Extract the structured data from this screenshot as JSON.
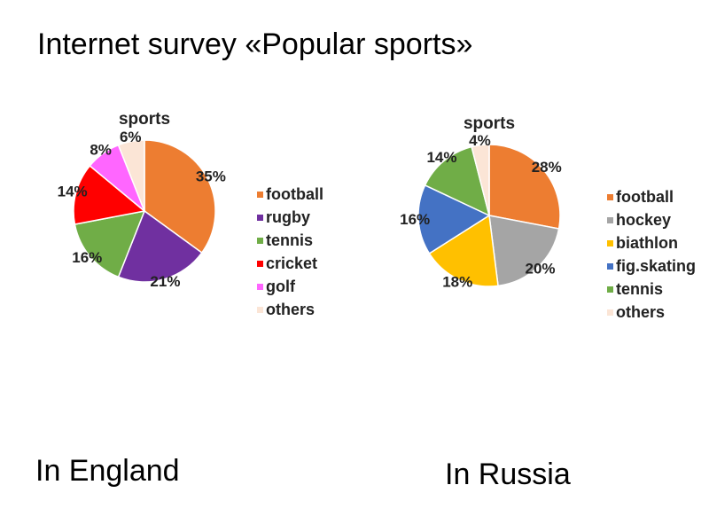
{
  "title": "Internet survey «Popular sports»",
  "captions": [
    "In England",
    "In Russia"
  ],
  "chart_data": [
    {
      "type": "pie",
      "title": "sports",
      "categories": [
        "football",
        "rugby",
        "tennis",
        "cricket",
        "golf",
        "others"
      ],
      "values": [
        35,
        21,
        16,
        14,
        8,
        6
      ],
      "value_labels": [
        "35%",
        "21%",
        "16%",
        "14%",
        "8%",
        "6%"
      ],
      "colors": [
        "#ed7d31",
        "#7030a0",
        "#70ad47",
        "#ff0000",
        "#ff66ff",
        "#fbe5d6"
      ]
    },
    {
      "type": "pie",
      "title": "sports",
      "categories": [
        "football",
        "hockey",
        "biathlon",
        "fig.skating",
        "tennis",
        "others"
      ],
      "values": [
        28,
        20,
        18,
        16,
        14,
        4
      ],
      "value_labels": [
        "28%",
        "20%",
        "18%",
        "16%",
        "14%",
        "4%"
      ],
      "colors": [
        "#ed7d31",
        "#a5a5a5",
        "#ffc000",
        "#4472c4",
        "#70ad47",
        "#fbe5d6"
      ]
    }
  ]
}
